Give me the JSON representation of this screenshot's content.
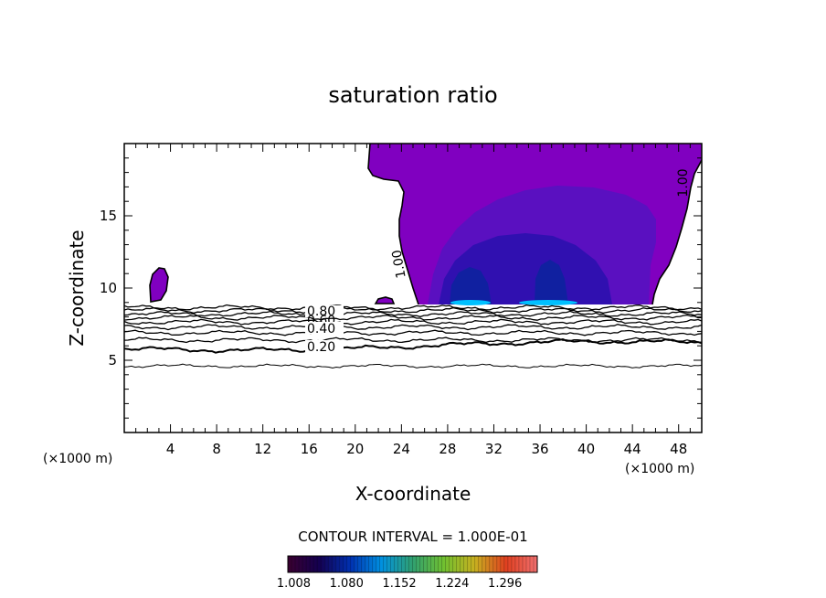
{
  "chart_data": {
    "type": "contour",
    "title": "saturation ratio",
    "xlabel": "X-coordinate",
    "ylabel": "Z-coordinate",
    "x_unit": "(×1000 m)",
    "z_unit": "(×1000 m)",
    "xlim": [
      0,
      50
    ],
    "ylim": [
      0,
      20
    ],
    "x_ticks": [
      4,
      8,
      12,
      16,
      20,
      24,
      28,
      32,
      36,
      40,
      44,
      48
    ],
    "y_ticks": [
      5,
      10,
      15
    ],
    "contour_interval_text": "CONTOUR INTERVAL = 1.000E-01",
    "contour_line_levels": [
      0.1,
      0.2,
      0.3,
      0.4,
      0.5,
      0.6,
      0.7,
      0.8,
      0.9,
      1.0
    ],
    "contour_labels": [
      {
        "text": "0.80",
        "x": 17.2,
        "z": 8.3
      },
      {
        "text": "0.60",
        "x": 17.2,
        "z": 7.8
      },
      {
        "text": "0.40",
        "x": 17.2,
        "z": 7.3
      },
      {
        "text": "0.20",
        "x": 17.2,
        "z": 5.8
      },
      {
        "text": "1.00",
        "x": 24.0,
        "z": 11.5
      },
      {
        "text": "1.00",
        "x": 48.5,
        "z": 17.0
      }
    ],
    "colorbar": {
      "tick_labels": [
        "1.008",
        "1.080",
        "1.152",
        "1.224",
        "1.296"
      ],
      "min": 1.0,
      "max": 1.34,
      "colors": [
        "#3a0030",
        "#140050",
        "#0030b0",
        "#0090e0",
        "#30a070",
        "#70c030",
        "#c8b020",
        "#e04020",
        "#f07070"
      ]
    },
    "colors": {
      "supersaturated_fill": "#8000c0",
      "mid_fill": "#5a10c0",
      "deep_fill": "#3010b0",
      "core_fill": "#1020a0",
      "peak_fill": "#00c0ff"
    },
    "grid": false
  }
}
